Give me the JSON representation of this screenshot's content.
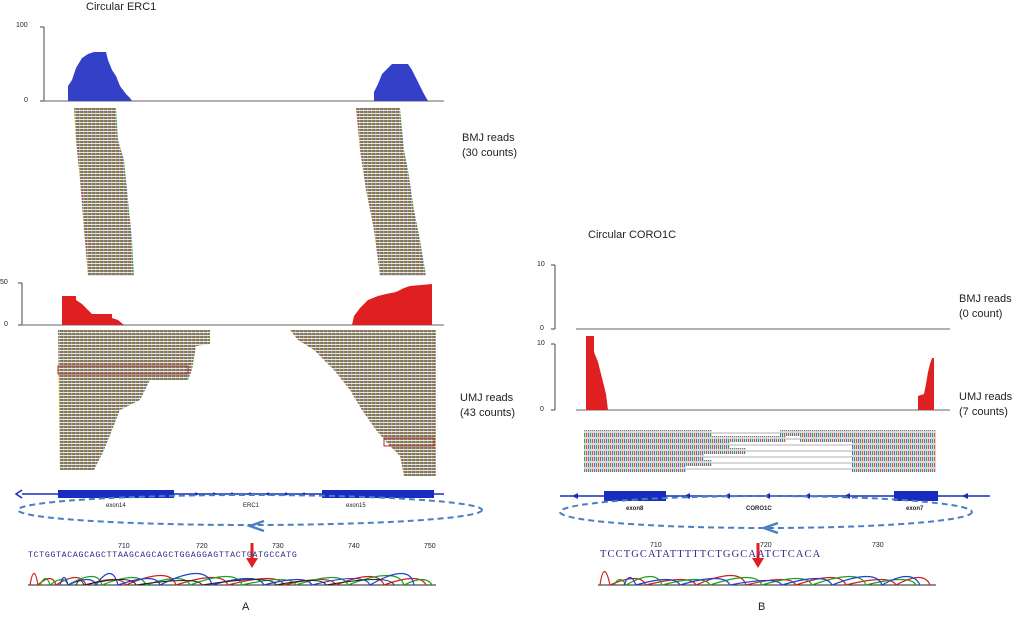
{
  "panel_a": {
    "title": "Circular ERC1",
    "letter": "A",
    "bmj_axis_ticks": [
      "100",
      "0"
    ],
    "umj_axis_ticks": [
      "50",
      "0"
    ],
    "bmj_label_line1": "BMJ reads",
    "bmj_label_line2": "(30 counts)",
    "umj_label_line1": "UMJ reads",
    "umj_label_line2": "(43 counts)",
    "exon_left": "exon14",
    "gene": "ERC1",
    "exon_right": "exon15",
    "sequence": "TCTGGTACAGCAGCTTAAGCAGCAGCTGGAGGAGTTACTGATGCCATG",
    "seq_ticks": [
      "710",
      "720",
      "730",
      "740",
      "750"
    ],
    "colors": {
      "bmj_coverage": "#3340c8",
      "umj_coverage": "#e02020",
      "exon": "#1a2bbf",
      "junction_arrow": "#e02020",
      "circle": "#4a7fc0"
    }
  },
  "panel_b": {
    "title": "Circular CORO1C",
    "letter": "B",
    "bmj_axis_ticks": [
      "10",
      "0"
    ],
    "umj_axis_ticks": [
      "10",
      "0"
    ],
    "bmj_label_line1": "BMJ reads",
    "bmj_label_line2": "(0 count)",
    "umj_label_line1": "UMJ reads",
    "umj_label_line2": "(7 counts)",
    "exon_left": "exon8",
    "gene": "CORO1C",
    "exon_right": "exon7",
    "sequence": "TCCTGCATATTTTTCTGGCAATCTCACA",
    "seq_ticks": [
      "710",
      "720",
      "730"
    ]
  }
}
